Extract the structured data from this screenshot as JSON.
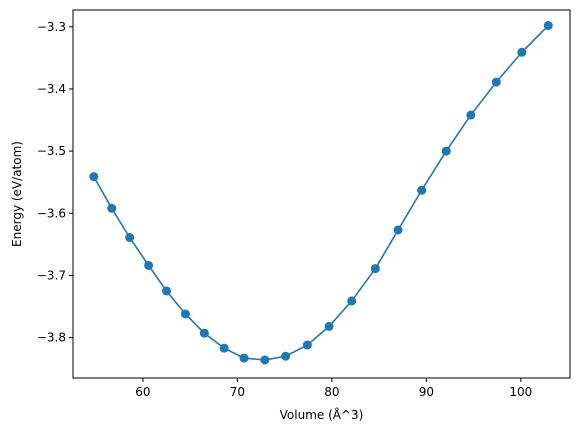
{
  "chart_data": {
    "type": "line",
    "title": "",
    "xlabel": "Volume (Å^3)",
    "ylabel": "Energy (eV/atom)",
    "xlim": [
      52.6,
      105.2
    ],
    "ylim": [
      -3.865,
      -3.273
    ],
    "xticks": [
      60,
      70,
      80,
      90,
      100
    ],
    "yticks": [
      -3.8,
      -3.7,
      -3.6,
      -3.5,
      -3.4,
      -3.3
    ],
    "xtick_labels": [
      "60",
      "70",
      "80",
      "90",
      "100"
    ],
    "ytick_labels": [
      "−3.8",
      "−3.7",
      "−3.6",
      "−3.5",
      "−3.4",
      "−3.3"
    ],
    "grid": false,
    "marker": "circle",
    "color": "#1f77b4",
    "series": [
      {
        "x": [
          54.8,
          56.7,
          58.6,
          60.6,
          62.5,
          64.5,
          66.5,
          68.6,
          70.7,
          72.9,
          75.1,
          77.4,
          79.7,
          82.1,
          84.6,
          87.0,
          89.5,
          92.1,
          94.7,
          97.4,
          100.1,
          102.9
        ],
        "y": [
          -3.541,
          -3.592,
          -3.639,
          -3.684,
          -3.725,
          -3.762,
          -3.793,
          -3.817,
          -3.833,
          -3.836,
          -3.83,
          -3.812,
          -3.782,
          -3.741,
          -3.689,
          -3.627,
          -3.563,
          -3.5,
          -3.442,
          -3.389,
          -3.341,
          -3.298
        ]
      }
    ]
  }
}
